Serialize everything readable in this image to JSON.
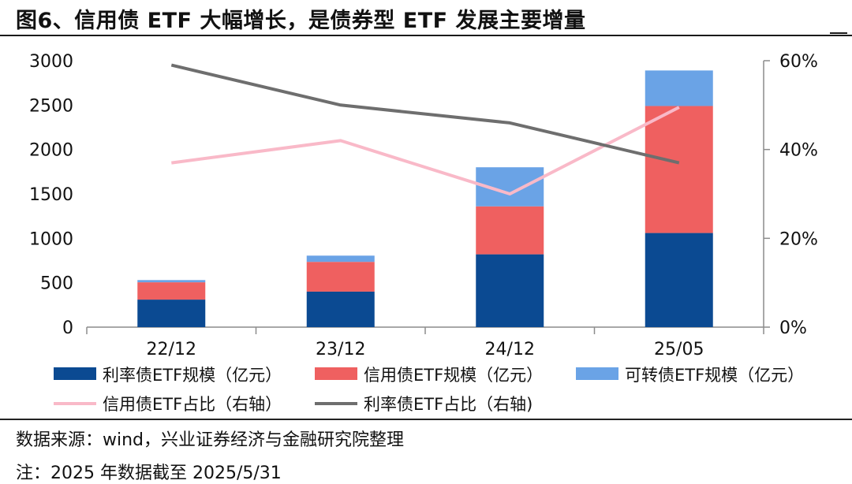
{
  "title": "图6、信用债 ETF 大幅增长，是债券型 ETF 发展主要增量",
  "footer": {
    "source": "数据来源：wind，兴业证券经济与金融研究院整理",
    "note": "注：2025 年数据截至 2025/5/31"
  },
  "chart_data": {
    "type": "bar",
    "stacked": true,
    "categories": [
      "22/12",
      "23/12",
      "24/12",
      "25/05"
    ],
    "y_left": {
      "ylim": [
        0,
        3000
      ],
      "ticks": [
        "0",
        "500",
        "1000",
        "1500",
        "2000",
        "2500",
        "3000"
      ]
    },
    "y_right": {
      "ylim": [
        0,
        0.6
      ],
      "ticks": [
        "0%",
        "20%",
        "40%",
        "60%"
      ]
    },
    "series": [
      {
        "name": "利率债ETF规模（亿元）",
        "kind": "bar",
        "axis": "left",
        "color": "#0b4a92",
        "values": [
          310,
          400,
          820,
          1060
        ]
      },
      {
        "name": "信用债ETF规模（亿元）",
        "kind": "bar",
        "axis": "left",
        "color": "#ef6060",
        "values": [
          195,
          335,
          540,
          1430
        ]
      },
      {
        "name": "可转债ETF规模（亿元）",
        "kind": "bar",
        "axis": "left",
        "color": "#6aa3e6",
        "values": [
          25,
          70,
          440,
          400
        ]
      },
      {
        "name": "信用债ETF占比（右轴）",
        "kind": "line",
        "axis": "right",
        "color": "#f9b9c8",
        "values": [
          0.37,
          0.42,
          0.3,
          0.495
        ]
      },
      {
        "name": "利率债ETF占比（右轴)",
        "kind": "line",
        "axis": "right",
        "color": "#6e6e6e",
        "values": [
          0.59,
          0.5,
          0.46,
          0.37
        ]
      }
    ],
    "legend_position": "bottom",
    "grid": false
  }
}
